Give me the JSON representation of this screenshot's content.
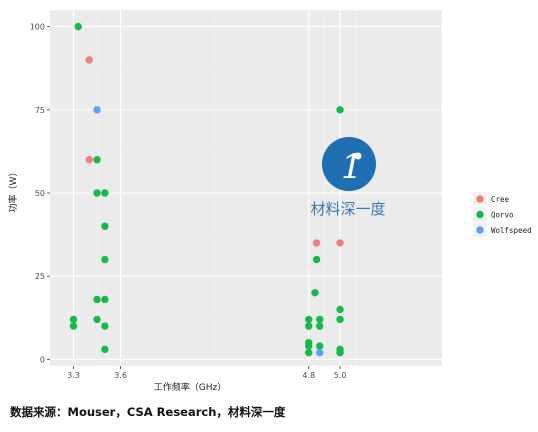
{
  "chart_data": {
    "type": "scatter",
    "title": "",
    "xlabel": "工作频率（GHz）",
    "ylabel": "功率（W）",
    "xlim": [
      3.15,
      5.65
    ],
    "ylim": [
      -2,
      105
    ],
    "x_ticks": [
      3.3,
      3.6,
      4.8,
      5.0
    ],
    "x_tick_labels": [
      "3.3",
      "3.6",
      "4.8",
      "5.0"
    ],
    "y_ticks": [
      0,
      25,
      50,
      75,
      100
    ],
    "y_tick_labels": [
      "0",
      "25",
      "50",
      "75",
      "100"
    ],
    "grid": true,
    "legend_position": "right",
    "series": [
      {
        "name": "Cree",
        "color": "#f07f7a",
        "points": [
          {
            "x": 3.4,
            "y": 90
          },
          {
            "x": 3.4,
            "y": 60
          },
          {
            "x": 4.85,
            "y": 35
          },
          {
            "x": 5.0,
            "y": 35
          }
        ]
      },
      {
        "name": "Qorvo",
        "color": "#19b84a",
        "points": [
          {
            "x": 3.33,
            "y": 100
          },
          {
            "x": 3.3,
            "y": 12
          },
          {
            "x": 3.3,
            "y": 10
          },
          {
            "x": 3.45,
            "y": 60
          },
          {
            "x": 3.45,
            "y": 50
          },
          {
            "x": 3.45,
            "y": 18
          },
          {
            "x": 3.45,
            "y": 12
          },
          {
            "x": 3.5,
            "y": 50
          },
          {
            "x": 3.5,
            "y": 40
          },
          {
            "x": 3.5,
            "y": 30
          },
          {
            "x": 3.5,
            "y": 18
          },
          {
            "x": 3.5,
            "y": 10
          },
          {
            "x": 3.5,
            "y": 3
          },
          {
            "x": 4.8,
            "y": 12
          },
          {
            "x": 4.8,
            "y": 10
          },
          {
            "x": 4.8,
            "y": 5
          },
          {
            "x": 4.8,
            "y": 4
          },
          {
            "x": 4.8,
            "y": 2
          },
          {
            "x": 4.84,
            "y": 20
          },
          {
            "x": 4.85,
            "y": 30
          },
          {
            "x": 4.87,
            "y": 12
          },
          {
            "x": 4.87,
            "y": 10
          },
          {
            "x": 4.87,
            "y": 4
          },
          {
            "x": 5.0,
            "y": 75
          },
          {
            "x": 5.0,
            "y": 15
          },
          {
            "x": 5.0,
            "y": 12
          },
          {
            "x": 5.0,
            "y": 3
          },
          {
            "x": 5.0,
            "y": 2
          }
        ]
      },
      {
        "name": "Wolfspeed",
        "color": "#619cff",
        "points": [
          {
            "x": 3.45,
            "y": 75
          },
          {
            "x": 4.87,
            "y": 2
          }
        ]
      }
    ]
  },
  "watermark": {
    "text": "材料深一度",
    "logo_color": "#1f6fb2"
  },
  "source_text": "数据来源：Mouser，CSA Research，材料深一度"
}
